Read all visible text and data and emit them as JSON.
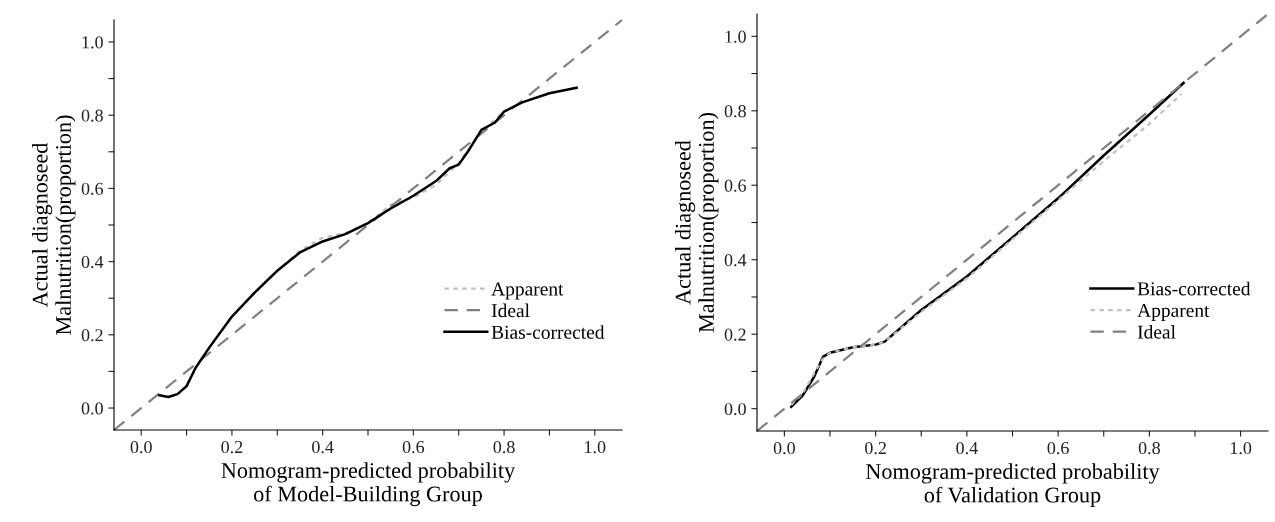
{
  "chart_data": [
    {
      "type": "line",
      "xlabel": "Nomogram-predicted probability\nof Model-Building Group",
      "ylabel": "Actual diagnoseed\nMalnutrition(proportion)",
      "xlim": [
        -0.06,
        1.06
      ],
      "ylim": [
        -0.06,
        1.06
      ],
      "xticks": [
        {
          "value": 0,
          "label": "0.0"
        },
        {
          "value": 0.1,
          "label": null
        },
        {
          "value": 0.2,
          "label": "0.2"
        },
        {
          "value": 0.3,
          "label": null
        },
        {
          "value": 0.4,
          "label": "0.4"
        },
        {
          "value": 0.5,
          "label": null
        },
        {
          "value": 0.6,
          "label": "0.6"
        },
        {
          "value": 0.7,
          "label": null
        },
        {
          "value": 0.8,
          "label": "0.8"
        },
        {
          "value": 0.9,
          "label": null
        },
        {
          "value": 1,
          "label": "1.0"
        }
      ],
      "yticks": [
        {
          "value": 0,
          "label": "0.0"
        },
        {
          "value": 0.1,
          "label": null
        },
        {
          "value": 0.2,
          "label": "0.2"
        },
        {
          "value": 0.3,
          "label": null
        },
        {
          "value": 0.4,
          "label": "0.4"
        },
        {
          "value": 0.5,
          "label": null
        },
        {
          "value": 0.6,
          "label": "0.6"
        },
        {
          "value": 0.7,
          "label": null
        },
        {
          "value": 0.8,
          "label": "0.8"
        },
        {
          "value": 0.9,
          "label": null
        },
        {
          "value": 1,
          "label": "1.0"
        }
      ],
      "legend": "bottom right",
      "grid": false,
      "marker": "none",
      "series": [
        {
          "name": "Apparent",
          "color": "#c0c0c0",
          "line_style": "dotted",
          "x": [
            0.04,
            0.06,
            0.08,
            0.1,
            0.12,
            0.15,
            0.2,
            0.25,
            0.3,
            0.35,
            0.4,
            0.45,
            0.5,
            0.55,
            0.6,
            0.65,
            0.7,
            0.75,
            0.8,
            0.84,
            0.9,
            0.96
          ],
          "values": [
            0.035,
            0.03,
            0.038,
            0.06,
            0.11,
            0.165,
            0.25,
            0.315,
            0.375,
            0.43,
            0.465,
            0.478,
            0.505,
            0.555,
            0.575,
            0.61,
            0.67,
            0.755,
            0.81,
            0.835,
            0.86,
            0.875
          ]
        },
        {
          "name": "Ideal",
          "color": "#808080",
          "line_style": "dashed",
          "x": [
            -0.06,
            1.06
          ],
          "values": [
            -0.06,
            1.06
          ]
        },
        {
          "name": "Bias-corrected",
          "color": "#000000",
          "line_style": "solid",
          "x": [
            0.04,
            0.06,
            0.08,
            0.1,
            0.12,
            0.15,
            0.2,
            0.25,
            0.3,
            0.35,
            0.4,
            0.45,
            0.5,
            0.55,
            0.6,
            0.65,
            0.68,
            0.7,
            0.72,
            0.75,
            0.78,
            0.8,
            0.84,
            0.9,
            0.96
          ],
          "values": [
            0.035,
            0.03,
            0.038,
            0.06,
            0.11,
            0.165,
            0.25,
            0.315,
            0.375,
            0.425,
            0.455,
            0.475,
            0.505,
            0.545,
            0.58,
            0.62,
            0.655,
            0.665,
            0.7,
            0.76,
            0.78,
            0.81,
            0.835,
            0.86,
            0.875
          ]
        }
      ]
    },
    {
      "type": "line",
      "xlabel": "Nomogram-predicted probability\nof Validation Group",
      "ylabel": "Actual diagnoseed\nMalnutrition(proportion)",
      "xlim": [
        -0.06,
        1.06
      ],
      "ylim": [
        -0.06,
        1.06
      ],
      "xticks": [
        {
          "value": 0,
          "label": "0.0"
        },
        {
          "value": 0.1,
          "label": null
        },
        {
          "value": 0.2,
          "label": "0.2"
        },
        {
          "value": 0.3,
          "label": null
        },
        {
          "value": 0.4,
          "label": "0.4"
        },
        {
          "value": 0.5,
          "label": null
        },
        {
          "value": 0.6,
          "label": "0.6"
        },
        {
          "value": 0.7,
          "label": null
        },
        {
          "value": 0.8,
          "label": "0.8"
        },
        {
          "value": 0.9,
          "label": null
        },
        {
          "value": 1,
          "label": "1.0"
        }
      ],
      "yticks": [
        {
          "value": 0,
          "label": "0.0"
        },
        {
          "value": 0.1,
          "label": null
        },
        {
          "value": 0.2,
          "label": "0.2"
        },
        {
          "value": 0.3,
          "label": null
        },
        {
          "value": 0.4,
          "label": "0.4"
        },
        {
          "value": 0.5,
          "label": null
        },
        {
          "value": 0.6,
          "label": "0.6"
        },
        {
          "value": 0.7,
          "label": null
        },
        {
          "value": 0.8,
          "label": "0.8"
        },
        {
          "value": 0.9,
          "label": null
        },
        {
          "value": 1,
          "label": "1.0"
        }
      ],
      "legend": "bottom right",
      "grid": false,
      "marker": "none",
      "series": [
        {
          "name": "Bias-corrected",
          "color": "#000000",
          "line_style": "solid",
          "x": [
            0.015,
            0.04,
            0.065,
            0.085,
            0.1,
            0.15,
            0.2,
            0.22,
            0.3,
            0.4,
            0.5,
            0.6,
            0.7,
            0.8,
            0.875
          ],
          "values": [
            0.005,
            0.035,
            0.085,
            0.14,
            0.15,
            0.165,
            0.172,
            0.18,
            0.265,
            0.355,
            0.46,
            0.565,
            0.68,
            0.79,
            0.875
          ]
        },
        {
          "name": "Apparent",
          "color": "#c0c0c0",
          "line_style": "dotted",
          "x": [
            0.015,
            0.04,
            0.07,
            0.085,
            0.1,
            0.15,
            0.2,
            0.22,
            0.3,
            0.4,
            0.5,
            0.6,
            0.7,
            0.8,
            0.87
          ],
          "values": [
            0.01,
            0.04,
            0.105,
            0.135,
            0.15,
            0.165,
            0.172,
            0.18,
            0.26,
            0.35,
            0.455,
            0.56,
            0.665,
            0.765,
            0.845
          ]
        },
        {
          "name": "Ideal",
          "color": "#808080",
          "line_style": "dashed",
          "x": [
            -0.06,
            1.06
          ],
          "values": [
            -0.06,
            1.06
          ]
        }
      ]
    }
  ]
}
